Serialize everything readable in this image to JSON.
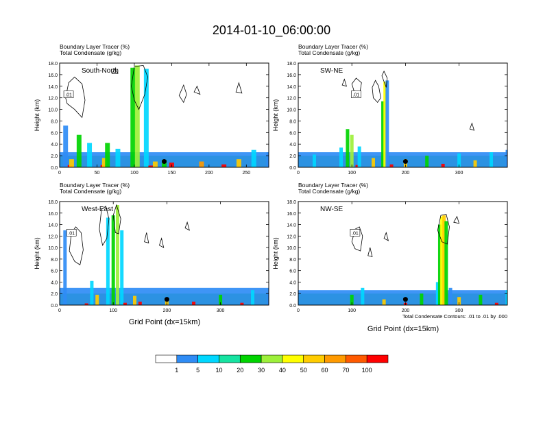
{
  "chart_data": {
    "type": "heatmap",
    "title": "2014-01-10_06:00:00",
    "subtitle_lines": [
      "Boundary Layer Tracer   (%)",
      "Total Condensate   (g/kg)"
    ],
    "ylabel": "Height (km)",
    "xlabel": "Grid Point (dx=15km)",
    "contour_note": "Total Condensate Contours: .01 to .01 by .000",
    "contour_label": ".01",
    "ylim": [
      0,
      18
    ],
    "yticks": [
      "0.0",
      "2.0",
      "4.0",
      "6.0",
      "8.0",
      "10.0",
      "12.0",
      "14.0",
      "16.0",
      "18.0"
    ],
    "legend": {
      "levels": [
        "1",
        "5",
        "10",
        "20",
        "30",
        "40",
        "50",
        "60",
        "70",
        "100"
      ],
      "colors": [
        "#ffffff",
        "#2f8cf5",
        "#00d7ff",
        "#16e3a1",
        "#00d400",
        "#9df03a",
        "#ffff00",
        "#ffcc00",
        "#ff9a00",
        "#ff5a00",
        "#ff0000"
      ]
    },
    "panels": [
      {
        "name": "South-North",
        "xlim": [
          0,
          280
        ],
        "xticks": [
          0,
          50,
          100,
          150,
          200,
          250
        ],
        "cols": [
          [
            0,
            0.2,
            "#ff0000"
          ],
          [
            0,
            0.6,
            "#ff5a00"
          ],
          [
            0,
            1.2,
            "#ffcc00"
          ],
          [
            0,
            2.0,
            "#00d400"
          ],
          [
            0,
            2.6,
            "#2f8cf5"
          ],
          [
            8,
            7.2,
            "#2f8cf5"
          ],
          [
            14,
            0.4,
            "#ff0000"
          ],
          [
            16,
            1.4,
            "#ffcc00"
          ],
          [
            26,
            5.6,
            "#00d400"
          ],
          [
            40,
            4.2,
            "#00d7ff"
          ],
          [
            58,
            0.4,
            "#ff0000"
          ],
          [
            60,
            1.6,
            "#ffcc00"
          ],
          [
            64,
            4.2,
            "#00d400"
          ],
          [
            78,
            3.2,
            "#00d7ff"
          ],
          [
            98,
            17.2,
            "#00d400"
          ],
          [
            104,
            17.6,
            "#9df03a"
          ],
          [
            116,
            17.0,
            "#00d7ff"
          ],
          [
            122,
            0.3,
            "#ff0000"
          ],
          [
            128,
            1.0,
            "#ffcc00"
          ],
          [
            140,
            1.3,
            "#00d400"
          ],
          [
            150,
            0.8,
            "#ff0000"
          ],
          [
            190,
            1.0,
            "#ff9a00"
          ],
          [
            220,
            0.5,
            "#ff0000"
          ],
          [
            240,
            1.4,
            "#ffcc00"
          ],
          [
            260,
            3.0,
            "#00d7ff"
          ],
          [
            280,
            2.6,
            "#2f8cf5"
          ]
        ],
        "contours": [
          [
            [
              8,
              12.0
            ],
            [
              12,
              14.6
            ],
            [
              20,
              15.6
            ],
            [
              30,
              14.4
            ],
            [
              34,
              11.6
            ],
            [
              30,
              8.6
            ],
            [
              20,
              10.0
            ],
            [
              10,
              11.0
            ]
          ],
          [
            [
              96,
              14.0
            ],
            [
              100,
              17.4
            ],
            [
              112,
              17.6
            ],
            [
              118,
              15.6
            ],
            [
              114,
              12.6
            ],
            [
              106,
              10.0
            ],
            [
              100,
              11.6
            ]
          ],
          [
            [
              70,
              16.2
            ],
            [
              74,
              17.0
            ],
            [
              78,
              16.2
            ]
          ],
          [
            [
              160,
              12.4
            ],
            [
              166,
              14.2
            ],
            [
              170,
              12.6
            ],
            [
              166,
              11.2
            ]
          ],
          [
            [
              180,
              13.0
            ],
            [
              184,
              14.0
            ],
            [
              188,
              12.6
            ]
          ],
          [
            [
              236,
              13.0
            ],
            [
              240,
              14.6
            ],
            [
              244,
              12.8
            ]
          ]
        ],
        "marker_x": 140
      },
      {
        "name": "SW-NE",
        "xlim": [
          0,
          390
        ],
        "xticks": [
          0,
          100,
          200,
          300
        ],
        "cols": [
          [
            0,
            0.2,
            "#ff0000"
          ],
          [
            0,
            0.6,
            "#ff5a00"
          ],
          [
            0,
            1.2,
            "#ffcc00"
          ],
          [
            0,
            2.0,
            "#00d400"
          ],
          [
            0,
            2.6,
            "#2f8cf5"
          ],
          [
            30,
            2.2,
            "#00d7ff"
          ],
          [
            80,
            3.4,
            "#00d7ff"
          ],
          [
            92,
            6.6,
            "#00d400"
          ],
          [
            100,
            5.6,
            "#9df03a"
          ],
          [
            110,
            0.4,
            "#ff0000"
          ],
          [
            114,
            3.6,
            "#00d7ff"
          ],
          [
            140,
            1.6,
            "#ffcc00"
          ],
          [
            158,
            11.4,
            "#00d400"
          ],
          [
            162,
            14.8,
            "#ffff00"
          ],
          [
            166,
            15.0,
            "#2f8cf5"
          ],
          [
            174,
            0.5,
            "#ff0000"
          ],
          [
            200,
            1.4,
            "#ffcc00"
          ],
          [
            240,
            2.0,
            "#00d400"
          ],
          [
            270,
            0.6,
            "#ff0000"
          ],
          [
            300,
            2.4,
            "#00d7ff"
          ],
          [
            330,
            1.2,
            "#ffcc00"
          ],
          [
            360,
            2.6,
            "#00d7ff"
          ],
          [
            390,
            3.0,
            "#2f8cf5"
          ]
        ],
        "contours": [
          [
            [
              100,
              14.4
            ],
            [
              108,
              15.4
            ],
            [
              118,
              14.6
            ],
            [
              114,
              12.4
            ],
            [
              104,
              13.2
            ]
          ],
          [
            [
              138,
              13.8
            ],
            [
              144,
              15.0
            ],
            [
              150,
              14.0
            ],
            [
              154,
              12.0
            ],
            [
              148,
              11.2
            ],
            [
              140,
              12.0
            ]
          ],
          [
            [
              156,
              15.8
            ],
            [
              160,
              16.6
            ],
            [
              166,
              15.4
            ],
            [
              164,
              13.8
            ]
          ],
          [
            [
              82,
              14.2
            ],
            [
              86,
              15.2
            ],
            [
              90,
              14.0
            ]
          ],
          [
            [
              320,
              6.6
            ],
            [
              324,
              7.6
            ],
            [
              328,
              6.4
            ]
          ]
        ],
        "marker_x": 200
      },
      {
        "name": "West-East",
        "xlim": [
          0,
          390
        ],
        "xticks": [
          0,
          100,
          200,
          300
        ],
        "cols": [
          [
            0,
            0.2,
            "#ff0000"
          ],
          [
            0,
            0.6,
            "#ff5a00"
          ],
          [
            0,
            1.2,
            "#ffcc00"
          ],
          [
            0,
            2.0,
            "#00d400"
          ],
          [
            0,
            3.0,
            "#2f8cf5"
          ],
          [
            10,
            13.0,
            "#2f8cf5"
          ],
          [
            50,
            0.3,
            "#ff0000"
          ],
          [
            60,
            4.2,
            "#00d7ff"
          ],
          [
            70,
            1.8,
            "#ffcc00"
          ],
          [
            90,
            15.2,
            "#00d7ff"
          ],
          [
            100,
            15.6,
            "#00d400"
          ],
          [
            108,
            17.4,
            "#9df03a"
          ],
          [
            116,
            13.0,
            "#00d7ff"
          ],
          [
            122,
            0.4,
            "#ff0000"
          ],
          [
            140,
            1.6,
            "#ffcc00"
          ],
          [
            150,
            0.6,
            "#ff0000"
          ],
          [
            200,
            1.2,
            "#ffcc00"
          ],
          [
            250,
            0.6,
            "#ff0000"
          ],
          [
            300,
            1.8,
            "#00d400"
          ],
          [
            340,
            0.4,
            "#ff0000"
          ],
          [
            360,
            2.6,
            "#00d7ff"
          ],
          [
            390,
            2.2,
            "#2f8cf5"
          ]
        ],
        "contours": [
          [
            [
              18,
              9.4
            ],
            [
              22,
              12.6
            ],
            [
              30,
              13.6
            ],
            [
              40,
              12.6
            ],
            [
              44,
              9.6
            ],
            [
              38,
              7.0
            ],
            [
              28,
              7.6
            ]
          ],
          [
            [
              74,
              13.2
            ],
            [
              78,
              16.6
            ],
            [
              86,
              17.2
            ],
            [
              92,
              15.0
            ],
            [
              88,
              11.6
            ],
            [
              80,
              10.4
            ]
          ],
          [
            [
              100,
              15.6
            ],
            [
              106,
              17.4
            ],
            [
              114,
              15.0
            ],
            [
              110,
              12.4
            ],
            [
              104,
              12.6
            ]
          ],
          [
            [
              158,
              11.0
            ],
            [
              162,
              12.6
            ],
            [
              166,
              10.8
            ]
          ],
          [
            [
              186,
              10.4
            ],
            [
              190,
              11.6
            ],
            [
              194,
              10.0
            ]
          ],
          [
            [
              234,
              13.4
            ],
            [
              238,
              14.4
            ],
            [
              242,
              13.0
            ]
          ]
        ],
        "marker_x": 200
      },
      {
        "name": "NW-SE",
        "xlim": [
          0,
          390
        ],
        "xticks": [
          0,
          100,
          200,
          300
        ],
        "cols": [
          [
            0,
            0.2,
            "#ff0000"
          ],
          [
            0,
            0.6,
            "#ff5a00"
          ],
          [
            0,
            1.2,
            "#ffcc00"
          ],
          [
            0,
            2.0,
            "#00d400"
          ],
          [
            0,
            2.6,
            "#2f8cf5"
          ],
          [
            100,
            1.8,
            "#00d400"
          ],
          [
            120,
            3.0,
            "#00d7ff"
          ],
          [
            160,
            1.0,
            "#ffcc00"
          ],
          [
            200,
            0.4,
            "#ff0000"
          ],
          [
            230,
            2.0,
            "#00d400"
          ],
          [
            260,
            4.0,
            "#00d7ff"
          ],
          [
            264,
            14.0,
            "#00d400"
          ],
          [
            268,
            15.4,
            "#ffff00"
          ],
          [
            272,
            15.6,
            "#ffcc00"
          ],
          [
            276,
            14.6,
            "#00d400"
          ],
          [
            284,
            3.0,
            "#2f8cf5"
          ],
          [
            300,
            1.4,
            "#ffcc00"
          ],
          [
            340,
            1.8,
            "#00d400"
          ],
          [
            370,
            0.4,
            "#ff0000"
          ],
          [
            390,
            2.6,
            "#00d7ff"
          ]
        ],
        "contours": [
          [
            [
              100,
              11.0
            ],
            [
              106,
              13.2
            ],
            [
              114,
              13.6
            ],
            [
              120,
              12.0
            ],
            [
              116,
              9.4
            ],
            [
              106,
              9.8
            ]
          ],
          [
            [
              130,
              8.6
            ],
            [
              134,
              10.0
            ],
            [
              138,
              8.4
            ]
          ],
          [
            [
              160,
              11.6
            ],
            [
              164,
              12.6
            ],
            [
              168,
              11.2
            ]
          ],
          [
            [
              260,
              13.0
            ],
            [
              266,
              15.6
            ],
            [
              276,
              15.8
            ],
            [
              282,
              13.6
            ],
            [
              278,
              10.6
            ],
            [
              268,
              11.0
            ]
          ],
          [
            [
              290,
              14.4
            ],
            [
              296,
              15.4
            ],
            [
              300,
              14.2
            ]
          ]
        ],
        "marker_x": 200
      }
    ]
  }
}
